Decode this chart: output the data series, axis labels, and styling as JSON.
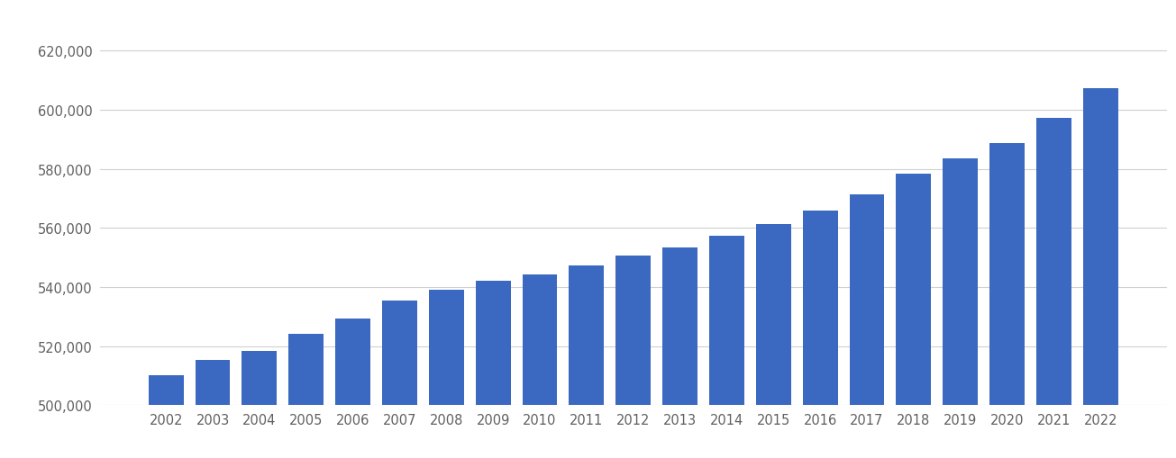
{
  "years": [
    2002,
    2003,
    2004,
    2005,
    2006,
    2007,
    2008,
    2009,
    2010,
    2011,
    2012,
    2013,
    2014,
    2015,
    2016,
    2017,
    2018,
    2019,
    2020,
    2021,
    2022
  ],
  "values": [
    510300,
    515300,
    518400,
    524100,
    529300,
    535300,
    539100,
    542000,
    544300,
    547200,
    550600,
    553500,
    557400,
    561400,
    565800,
    571400,
    578300,
    583400,
    588600,
    597200,
    607300
  ],
  "bar_color": "#3b68c0",
  "background_color": "#ffffff",
  "ylim": [
    500000,
    632000
  ],
  "yticks": [
    500000,
    520000,
    540000,
    560000,
    580000,
    600000,
    620000
  ],
  "grid_color": "#d0d0d0",
  "tick_label_color": "#606060",
  "figsize": [
    13.05,
    5.1
  ],
  "dpi": 100
}
